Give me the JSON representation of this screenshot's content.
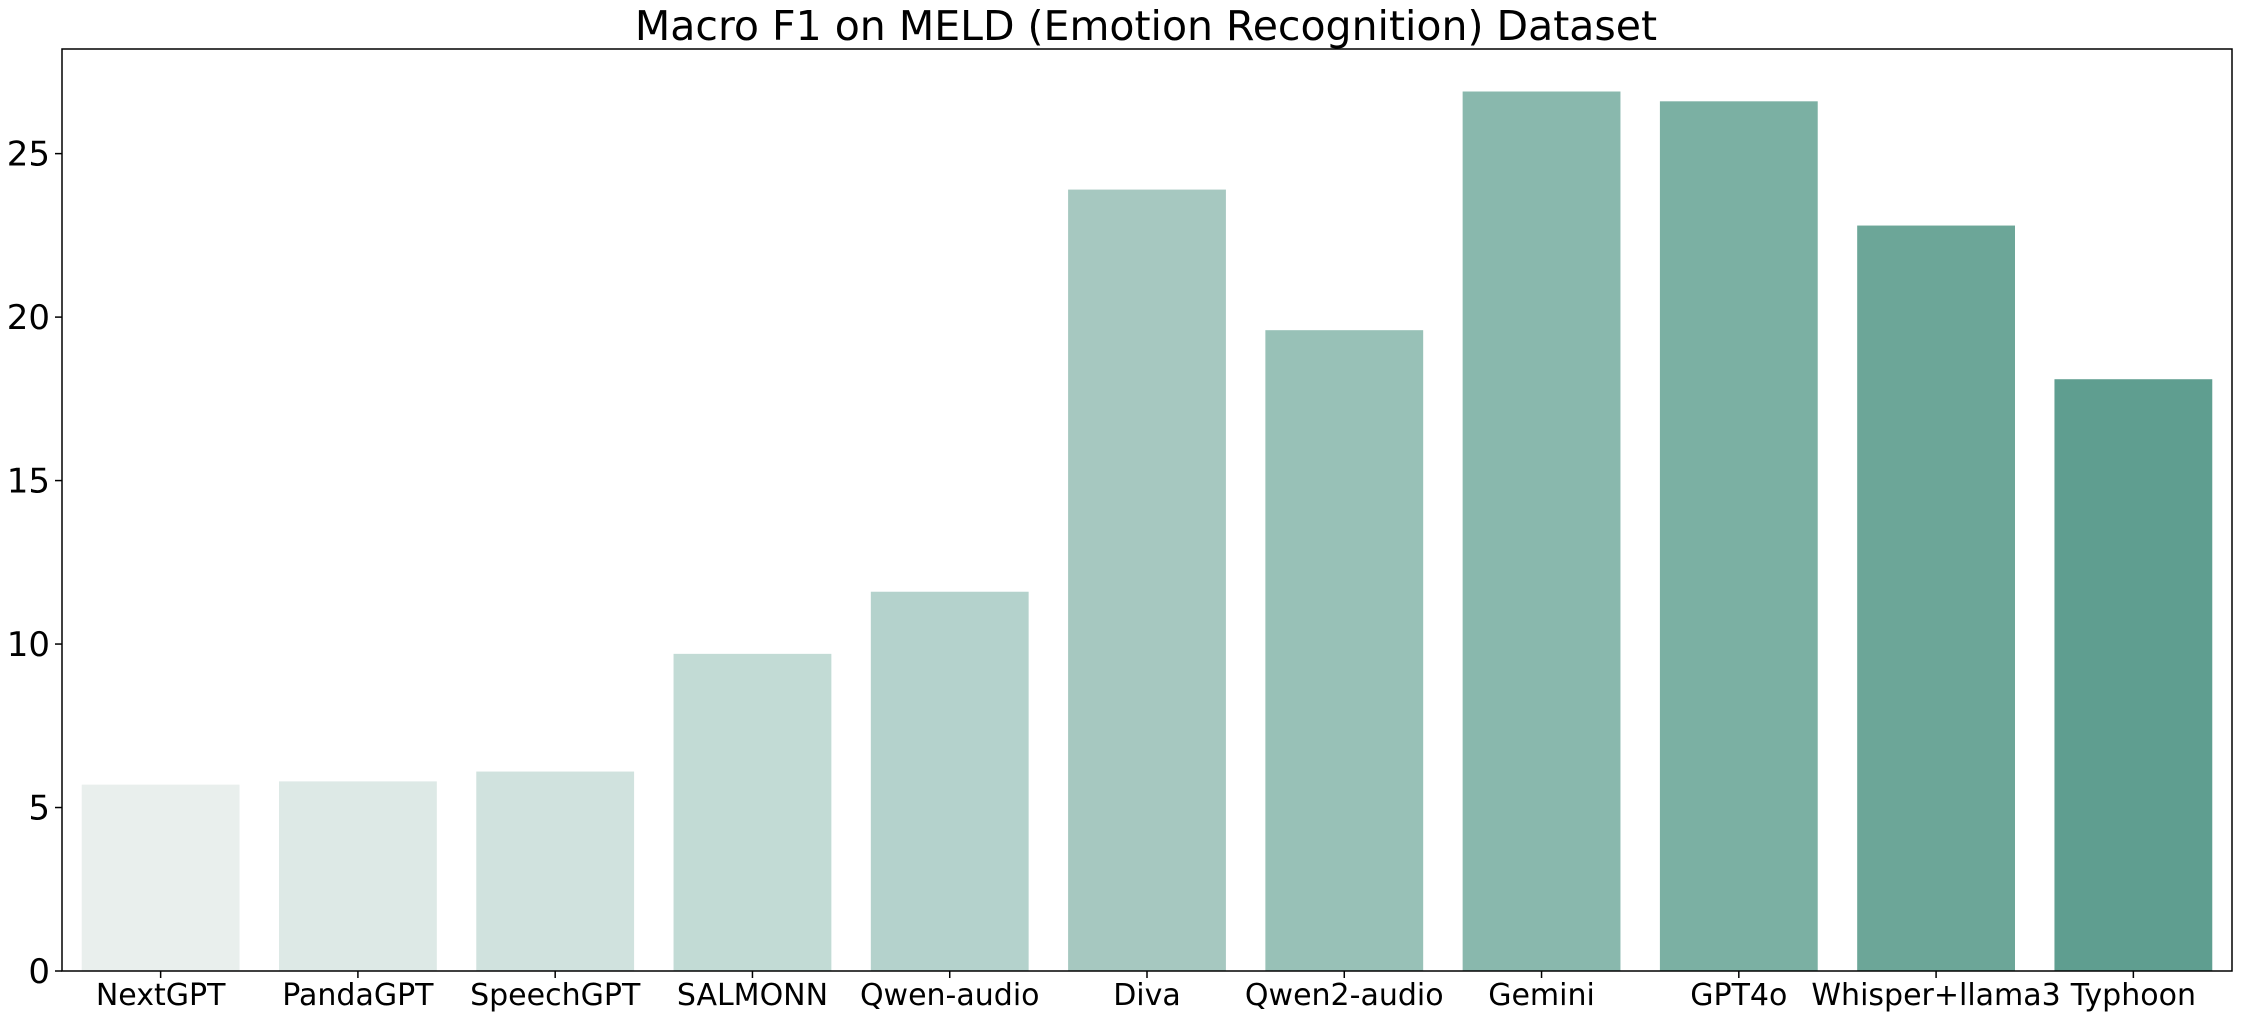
{
  "chart_data": {
    "type": "bar",
    "title": "Macro F1 on MELD (Emotion Recognition) Dataset",
    "xlabel": "",
    "ylabel": "",
    "categories": [
      "NextGPT",
      "PandaGPT",
      "SpeechGPT",
      "SALMONN",
      "Qwen-audio",
      "Diva",
      "Qwen2-audio",
      "Gemini",
      "GPT4o",
      "Whisper+llama3",
      "Typhoon"
    ],
    "values": [
      5.7,
      5.8,
      6.1,
      9.7,
      11.6,
      23.9,
      19.6,
      26.9,
      26.6,
      22.8,
      18.1
    ],
    "colors": [
      "#e9efed",
      "#dde9e6",
      "#d0e2de",
      "#c2dbd5",
      "#b4d2cc",
      "#a6c8c0",
      "#98c1b7",
      "#89b8ad",
      "#7bb0a3",
      "#6ca698",
      "#5f9e90"
    ],
    "ylim": [
      0,
      28.2
    ],
    "yticks": [
      0,
      5,
      10,
      15,
      20,
      25
    ],
    "ytick_labels": [
      "0",
      "5",
      "10",
      "15",
      "20",
      "25"
    ],
    "grid": false,
    "legend": "none"
  }
}
